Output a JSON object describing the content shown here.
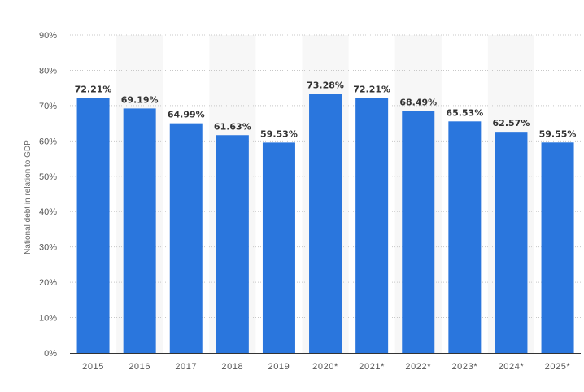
{
  "chart_data": {
    "type": "bar",
    "title": "",
    "xlabel": "",
    "ylabel": "National debt in relation to GDP",
    "categories": [
      "2015",
      "2016",
      "2017",
      "2018",
      "2019",
      "2020*",
      "2021*",
      "2022*",
      "2023*",
      "2024*",
      "2025*"
    ],
    "values": [
      72.21,
      69.19,
      64.99,
      61.63,
      59.53,
      73.28,
      72.21,
      68.49,
      65.53,
      62.57,
      59.55
    ],
    "value_labels": [
      "72.21%",
      "69.19%",
      "64.99%",
      "61.63%",
      "59.53%",
      "73.28%",
      "72.21%",
      "68.49%",
      "65.53%",
      "62.57%",
      "59.55%"
    ],
    "ylim": [
      0,
      90
    ],
    "yticks": [
      "0%",
      "10%",
      "20%",
      "30%",
      "40%",
      "50%",
      "60%",
      "70%",
      "80%",
      "90%"
    ],
    "grid": true,
    "legend": "none",
    "bar_color": "#2a76dd"
  }
}
